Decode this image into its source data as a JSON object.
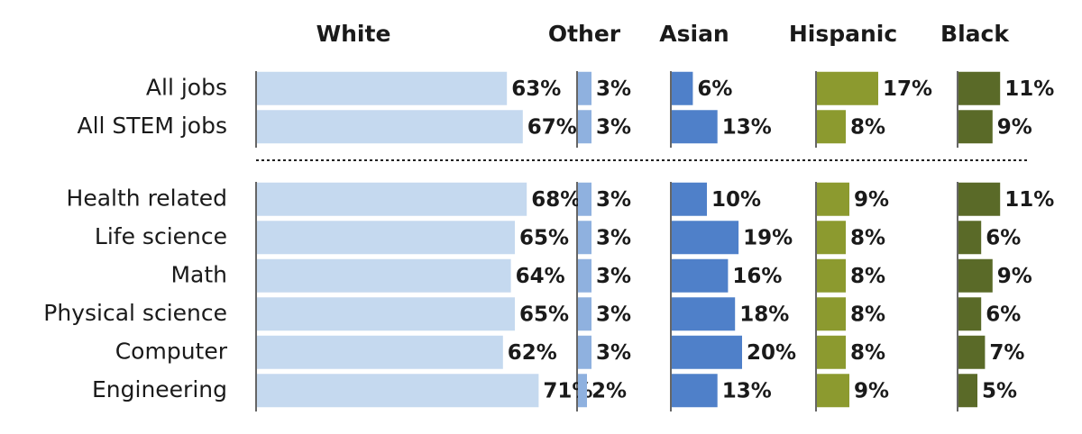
{
  "chart_data": {
    "type": "bar",
    "layout": "small-multiples-horizontal",
    "groups": [
      [
        "All jobs",
        "All STEM jobs"
      ],
      [
        "Health related",
        "Life science",
        "Math",
        "Physical science",
        "Computer",
        "Engineering"
      ]
    ],
    "series": [
      {
        "name": "White",
        "color": "#c5d9ef",
        "values": {
          "All jobs": 63,
          "All STEM jobs": 67,
          "Health related": 68,
          "Life science": 65,
          "Math": 64,
          "Physical science": 65,
          "Computer": 62,
          "Engineering": 71
        }
      },
      {
        "name": "Other",
        "color": "#8fb1df",
        "values": {
          "All jobs": 3,
          "All STEM jobs": 3,
          "Health related": 3,
          "Life science": 3,
          "Math": 3,
          "Physical science": 3,
          "Computer": 3,
          "Engineering": 2
        }
      },
      {
        "name": "Asian",
        "color": "#4f80c9",
        "values": {
          "All jobs": 6,
          "All STEM jobs": 13,
          "Health related": 10,
          "Life science": 19,
          "Math": 16,
          "Physical science": 18,
          "Computer": 20,
          "Engineering": 13
        }
      },
      {
        "name": "Hispanic",
        "color": "#8c9a2f",
        "values": {
          "All jobs": 17,
          "All STEM jobs": 8,
          "Health related": 9,
          "Life science": 8,
          "Math": 8,
          "Physical science": 8,
          "Computer": 8,
          "Engineering": 9
        }
      },
      {
        "name": "Black",
        "color": "#5a6a28",
        "values": {
          "All jobs": 11,
          "All STEM jobs": 9,
          "Health related": 11,
          "Life science": 6,
          "Math": 9,
          "Physical science": 6,
          "Computer": 7,
          "Engineering": 5
        }
      }
    ],
    "value_suffix": "%",
    "grid": false,
    "legend": "none",
    "group_separator": "dotted-line"
  }
}
